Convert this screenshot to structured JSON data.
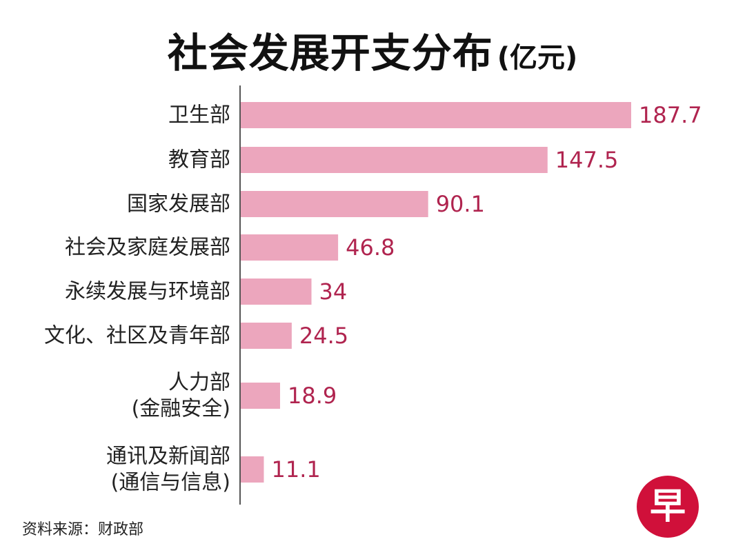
{
  "chart_data": {
    "type": "bar",
    "orientation": "horizontal",
    "title": "社会发展开支分布",
    "unit": "(亿元)",
    "categories": [
      [
        "卫生部"
      ],
      [
        "教育部"
      ],
      [
        "国家发展部"
      ],
      [
        "社会及家庭发展部"
      ],
      [
        "永续发展与环境部"
      ],
      [
        "文化、社区及青年部"
      ],
      [
        "人力部",
        "(金融安全)"
      ],
      [
        "通讯及新闻部",
        "(通信与信息)"
      ]
    ],
    "values": [
      187.7,
      147.5,
      90.1,
      46.8,
      34,
      24.5,
      18.9,
      11.1
    ],
    "value_labels": [
      "187.7",
      "147.5",
      "90.1",
      "46.8",
      "34",
      "24.5",
      "18.9",
      "11.1"
    ],
    "xlim": [
      0,
      187.7
    ],
    "grid": false,
    "legend": "none",
    "bar_color": "#eca6bd",
    "label_color": "#b0244f"
  },
  "source": "资料来源：财政部",
  "logo": {
    "text": "早",
    "color": "#d0103a"
  }
}
